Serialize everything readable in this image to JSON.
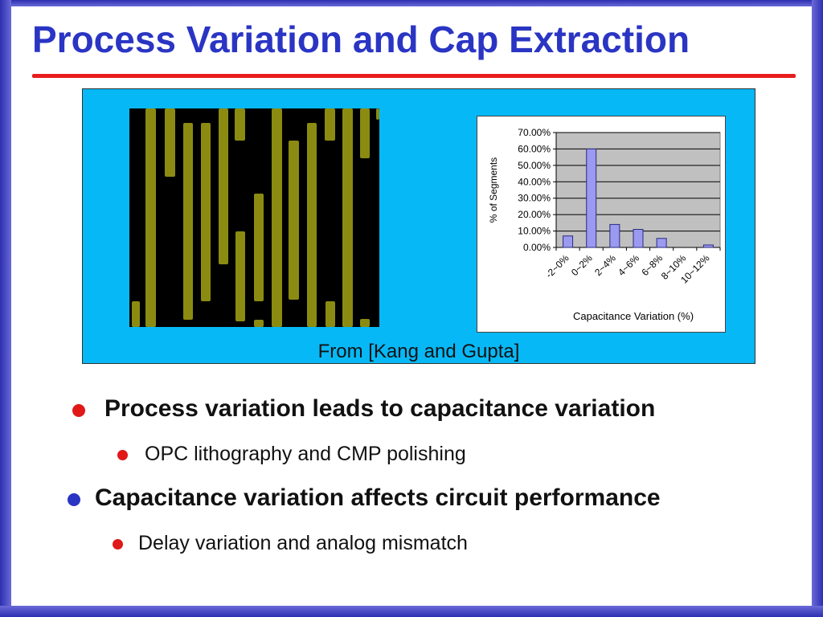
{
  "slide": {
    "title": "Process Variation and Cap Extraction",
    "caption": "From [Kang and Gupta]",
    "colors": {
      "title": "#2a35c4",
      "rule": "#e81c1c",
      "panel": "#07b8f6",
      "wire": "#8b8b12",
      "bar": "#9a9af0"
    }
  },
  "bullets": [
    {
      "text": "Process variation leads to capacitance variation",
      "level": 1,
      "bullet_color": "#e01818"
    },
    {
      "text": "OPC lithography and CMP polishing",
      "level": 2,
      "bullet_color": "#e01818"
    },
    {
      "text": "Capacitance variation affects circuit performance",
      "level": 1,
      "bullet_color": "#2a35c4"
    },
    {
      "text": "Delay variation and analog mismatch",
      "level": 2,
      "bullet_color": "#e01818"
    }
  ],
  "chart_data": {
    "type": "bar",
    "categories": [
      "-2~0%",
      "0~2%",
      "2~4%",
      "4~6%",
      "6~8%",
      "8~10%",
      "10~12%"
    ],
    "values": [
      7,
      60,
      14,
      11,
      5.5,
      0,
      1.5
    ],
    "ylabel": "% of Segments",
    "xlabel": "Capacitance Variation (%)",
    "ylim": [
      0,
      70
    ],
    "yticks": [
      "0.00%",
      "10.00%",
      "20.00%",
      "30.00%",
      "40.00%",
      "50.00%",
      "60.00%",
      "70.00%"
    ],
    "grid": true,
    "plot_background": "#c0c0c0"
  }
}
